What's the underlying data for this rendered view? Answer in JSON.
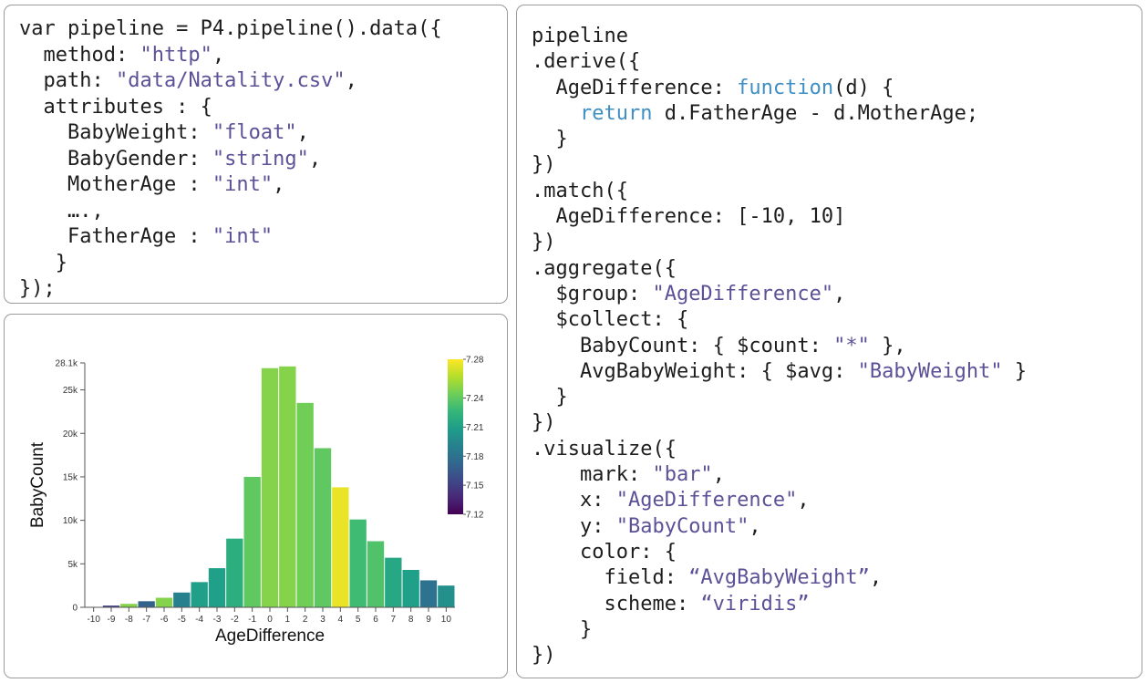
{
  "code_left": {
    "lines": [
      [
        {
          "t": "var pipeline = P4.pipeline().data({"
        }
      ],
      [
        {
          "t": "  method: "
        },
        {
          "t": "\"http\"",
          "c": "str"
        },
        {
          "t": ","
        }
      ],
      [
        {
          "t": "  path: "
        },
        {
          "t": "\"data/Natality.csv\"",
          "c": "str"
        },
        {
          "t": ","
        }
      ],
      [
        {
          "t": "  attributes : {"
        }
      ],
      [
        {
          "t": "    BabyWeight: "
        },
        {
          "t": "\"float\"",
          "c": "str"
        },
        {
          "t": ","
        }
      ],
      [
        {
          "t": "    BabyGender: "
        },
        {
          "t": "\"string\"",
          "c": "str"
        },
        {
          "t": ","
        }
      ],
      [
        {
          "t": "    MotherAge : "
        },
        {
          "t": "\"int\"",
          "c": "str"
        },
        {
          "t": ","
        }
      ],
      [
        {
          "t": "    ….,"
        }
      ],
      [
        {
          "t": "    FatherAge : "
        },
        {
          "t": "\"int\"",
          "c": "str"
        }
      ],
      [
        {
          "t": "   }"
        }
      ],
      [
        {
          "t": "});"
        }
      ]
    ]
  },
  "code_right": {
    "lines": [
      [
        {
          "t": "pipeline"
        }
      ],
      [
        {
          "t": ".derive({"
        }
      ],
      [
        {
          "t": "  AgeDifference: "
        },
        {
          "t": "function",
          "c": "kw"
        },
        {
          "t": "(d) {"
        }
      ],
      [
        {
          "t": "    "
        },
        {
          "t": "return",
          "c": "kw"
        },
        {
          "t": " d.FatherAge - d.MotherAge;"
        }
      ],
      [
        {
          "t": "  }"
        }
      ],
      [
        {
          "t": "})"
        }
      ],
      [
        {
          "t": ".match({"
        }
      ],
      [
        {
          "t": "  AgeDifference: [-10, 10]"
        }
      ],
      [
        {
          "t": "})"
        }
      ],
      [
        {
          "t": ".aggregate({"
        }
      ],
      [
        {
          "t": "  $group: "
        },
        {
          "t": "\"AgeDifference\"",
          "c": "str"
        },
        {
          "t": ","
        }
      ],
      [
        {
          "t": "  $collect: {"
        }
      ],
      [
        {
          "t": "    BabyCount: { $count: "
        },
        {
          "t": "\"*\"",
          "c": "str"
        },
        {
          "t": " },"
        }
      ],
      [
        {
          "t": "    AvgBabyWeight: { $avg: "
        },
        {
          "t": "\"BabyWeight\"",
          "c": "str"
        },
        {
          "t": " }"
        }
      ],
      [
        {
          "t": "  }"
        }
      ],
      [
        {
          "t": "})"
        }
      ],
      [
        {
          "t": ".visualize({"
        }
      ],
      [
        {
          "t": "    mark: "
        },
        {
          "t": "\"bar\"",
          "c": "str"
        },
        {
          "t": ","
        }
      ],
      [
        {
          "t": "    x: "
        },
        {
          "t": "\"AgeDifference\"",
          "c": "str"
        },
        {
          "t": ","
        }
      ],
      [
        {
          "t": "    y: "
        },
        {
          "t": "\"BabyCount\"",
          "c": "str"
        },
        {
          "t": ","
        }
      ],
      [
        {
          "t": "    color: {"
        }
      ],
      [
        {
          "t": "      field: "
        },
        {
          "t": "“AvgBabyWeight”",
          "c": "str"
        },
        {
          "t": ","
        }
      ],
      [
        {
          "t": "      scheme: "
        },
        {
          "t": "“viridis”",
          "c": "str"
        }
      ],
      [
        {
          "t": "    }"
        }
      ],
      [
        {
          "t": "})"
        }
      ]
    ]
  },
  "chart_data": {
    "type": "bar",
    "xlabel": "AgeDifference",
    "ylabel": "BabyCount",
    "categories": [
      "-10",
      "-9",
      "-8",
      "-7",
      "-6",
      "-5",
      "-4",
      "-3",
      "-2",
      "-1",
      "0",
      "1",
      "2",
      "3",
      "4",
      "5",
      "6",
      "7",
      "8",
      "9",
      "10"
    ],
    "values": [
      50,
      200,
      400,
      700,
      1100,
      1700,
      2900,
      4500,
      7900,
      15000,
      27500,
      27700,
      23500,
      18300,
      13800,
      10100,
      7600,
      5700,
      4300,
      3100,
      2500
    ],
    "colors": [
      7.13,
      7.15,
      7.25,
      7.17,
      7.25,
      7.19,
      7.21,
      7.21,
      7.22,
      7.24,
      7.25,
      7.25,
      7.245,
      7.24,
      7.275,
      7.23,
      7.235,
      7.215,
      7.21,
      7.18,
      7.2
    ],
    "ylim": [
      0,
      28100
    ],
    "yticks": [
      0,
      5000,
      10000,
      15000,
      20000,
      25000,
      28100
    ],
    "ytick_labels": [
      "0",
      "5k",
      "10k",
      "15k",
      "20k",
      "25k",
      "28.1k"
    ],
    "color_scale": {
      "scheme": "viridis",
      "range": [
        7.12,
        7.28
      ],
      "ticks": [
        7.12,
        7.15,
        7.18,
        7.21,
        7.24,
        7.28
      ],
      "tick_labels": [
        "7.12",
        "7.15",
        "7.18",
        "7.21",
        "7.24",
        "7.28"
      ]
    }
  }
}
